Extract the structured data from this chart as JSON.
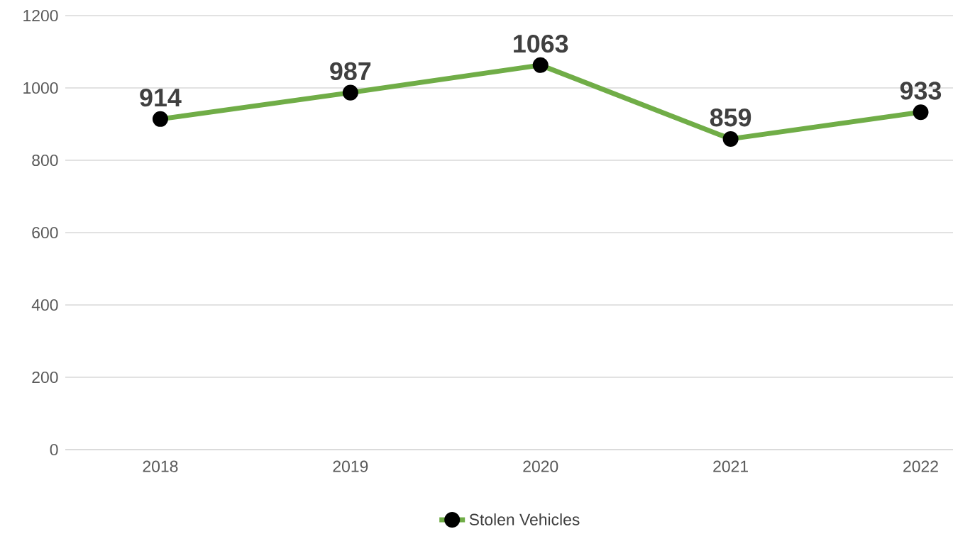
{
  "chart_data": {
    "type": "line",
    "categories": [
      "2018",
      "2019",
      "2020",
      "2021",
      "2022"
    ],
    "series": [
      {
        "name": "Stolen Vehicles",
        "color": "#70ad47",
        "values": [
          914,
          987,
          1063,
          859,
          933
        ]
      }
    ],
    "ylim": [
      0,
      1200
    ],
    "yticks": [
      0,
      200,
      400,
      600,
      800,
      1000,
      1200
    ],
    "grid": "y",
    "legend": "bottom",
    "marker": "circle",
    "line_style": "solid",
    "data_labels": true
  }
}
